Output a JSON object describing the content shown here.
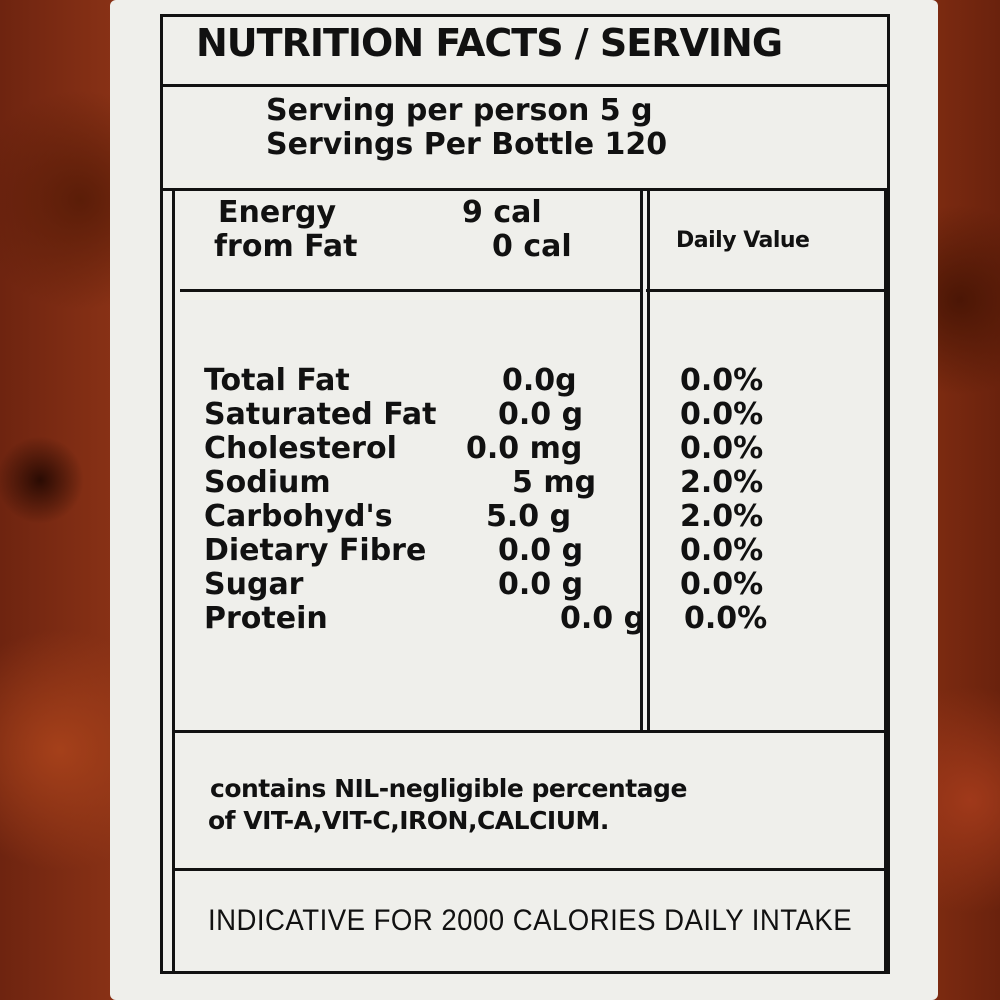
{
  "label": {
    "title": "NUTRITION FACTS /  SERVING",
    "serving_per_person": "Serving per person  5 g",
    "servings_per_bottle": "Servings  Per  Bottle  120",
    "energy_label": "Energy",
    "energy_value": "9 cal",
    "from_fat_label": "from Fat",
    "from_fat_value": "0 cal",
    "daily_value_header": "Daily Value",
    "nutrients": [
      {
        "name": "Total Fat",
        "amount": "0.0g",
        "dv": "0.0%"
      },
      {
        "name": "Saturated Fat",
        "amount": "0.0 g",
        "dv": "0.0%"
      },
      {
        "name": "Cholesterol",
        "amount": "0.0 mg",
        "dv": "0.0%"
      },
      {
        "name": "Sodium",
        "amount": "5 mg",
        "dv": "2.0%"
      },
      {
        "name": "Carbohyd's",
        "amount": "5.0 g",
        "dv": "2.0%"
      },
      {
        "name": "Dietary Fibre",
        "amount": "0.0 g",
        "dv": "0.0%"
      },
      {
        "name": "Sugar",
        "amount": "0.0 g",
        "dv": "0.0%"
      },
      {
        "name": "Protein",
        "amount": "0.0 g",
        "dv": "0.0%"
      }
    ],
    "vitamin_note_line1": "contains NIL-negligible percentage",
    "vitamin_note_line2": "of VIT-A,VIT-C,IRON,CALCIUM.",
    "footer": "INDICATIVE FOR 2000 CALORIES DAILY INTAKE"
  }
}
